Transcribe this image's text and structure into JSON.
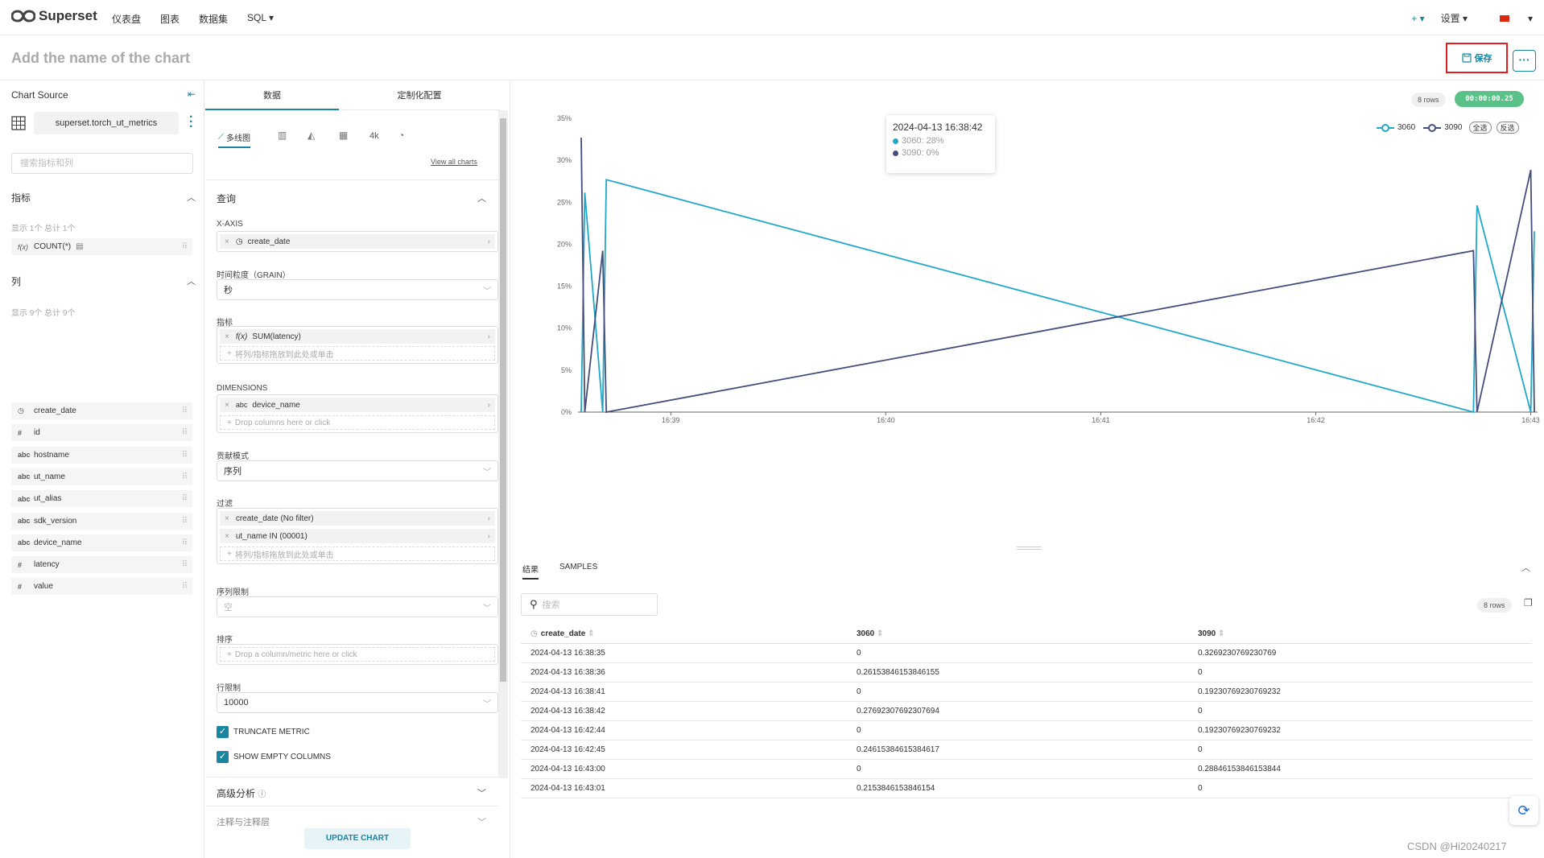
{
  "topbar": {
    "brand": "Superset",
    "nav": [
      "仪表盘",
      "图表",
      "数据集",
      "SQL ▾"
    ],
    "plus": "+ ▾",
    "settings": "设置 ▾",
    "lang": "▾"
  },
  "header": {
    "chart_title": "Add the name of the chart",
    "save_label": "保存",
    "more_label": "···"
  },
  "left_panel": {
    "source_label": "Chart Source",
    "dataset": "superset.torch_ut_metrics",
    "search_placeholder": "搜索指标和列",
    "metrics_title": "指标",
    "metrics_count": "显示 1个 总计 1个",
    "metrics": [
      {
        "icon": "f(x)",
        "name": "COUNT(*)"
      }
    ],
    "columns_title": "列",
    "columns_count": "显示 9个 总计 9个",
    "columns": [
      {
        "icon": "clock",
        "name": "create_date"
      },
      {
        "icon": "#",
        "name": "id"
      },
      {
        "icon": "abc",
        "name": "hostname"
      },
      {
        "icon": "abc",
        "name": "ut_name"
      },
      {
        "icon": "abc",
        "name": "ut_alias"
      },
      {
        "icon": "abc",
        "name": "sdk_version"
      },
      {
        "icon": "abc",
        "name": "device_name"
      },
      {
        "icon": "#",
        "name": "latency"
      },
      {
        "icon": "#",
        "name": "value"
      }
    ]
  },
  "mid_panel": {
    "tabs": [
      "数据",
      "定制化配置"
    ],
    "chart_types": [
      "多线图",
      "4k"
    ],
    "view_all": "View all charts",
    "query_title": "查询",
    "x_axis_label": "X-AXIS",
    "x_axis_value": "create_date",
    "grain_label": "时间粒度（GRAIN）",
    "grain_value": "秒",
    "metrics_label": "指标",
    "metric_value": "SUM(latency)",
    "metric_drop": "将列/指标拖放到此处或单击",
    "dimensions_label": "DIMENSIONS",
    "dimension_value": "device_name",
    "dimension_drop": "Drop columns here or click",
    "contribution_label": "贡献模式",
    "contribution_value": "序列",
    "filters_label": "过滤",
    "filters": [
      "create_date (No filter)",
      "ut_name IN (00001)"
    ],
    "filter_drop": "将列/指标拖放到此处或单击",
    "series_limit_label": "序列限制",
    "series_limit_value": "空",
    "sort_label": "排序",
    "sort_drop": "Drop a column/metric here or click",
    "row_limit_label": "行限制",
    "row_limit_value": "10000",
    "truncate_label": "TRUNCATE METRIC",
    "show_empty_label": "SHOW EMPTY COLUMNS",
    "advanced_label": "高级分析",
    "annotations_label": "注释与注释层",
    "update_label": "UPDATE CHART"
  },
  "right_panel": {
    "rows_badge": "8 rows",
    "timer": "00:00:00.25",
    "tooltip": {
      "title": "2024-04-13 16:38:42",
      "lines": [
        "3060: 28%",
        "3090: 0%"
      ]
    },
    "legend_select_all": "全选",
    "legend_invert": "反选",
    "result_tabs": [
      "结果",
      "SAMPLES"
    ],
    "search_placeholder": "搜索",
    "table_rows_badge": "8 rows",
    "table_headers": [
      "create_date",
      "3060",
      "3090"
    ],
    "table_rows": [
      [
        "2024-04-13 16:38:35",
        "0",
        "0.3269230769230769"
      ],
      [
        "2024-04-13 16:38:36",
        "0.26153846153846155",
        "0"
      ],
      [
        "2024-04-13 16:38:41",
        "0",
        "0.19230769230769232"
      ],
      [
        "2024-04-13 16:38:42",
        "0.27692307692307694",
        "0"
      ],
      [
        "2024-04-13 16:42:44",
        "0",
        "0.19230769230769232"
      ],
      [
        "2024-04-13 16:42:45",
        "0.24615384615384617",
        "0"
      ],
      [
        "2024-04-13 16:43:00",
        "0",
        "0.28846153846153844"
      ],
      [
        "2024-04-13 16:43:01",
        "0.2153846153846154",
        "0"
      ]
    ],
    "watermark": "CSDN @Hi20240217"
  },
  "chart_data": {
    "type": "line",
    "x": [
      "16:38:35",
      "16:38:36",
      "16:38:41",
      "16:38:42",
      "16:42:44",
      "16:42:45",
      "16:43:00",
      "16:43:01"
    ],
    "x_ticks": [
      "16:39",
      "16:40",
      "16:41",
      "16:42",
      "16:43"
    ],
    "y_ticks": [
      "0%",
      "5%",
      "10%",
      "15%",
      "20%",
      "25%",
      "30%",
      "35%"
    ],
    "ylim": [
      0,
      0.35
    ],
    "series": [
      {
        "name": "3060",
        "color": "#1fa8c9",
        "values": [
          0,
          0.2615,
          0,
          0.2769,
          0,
          0.2462,
          0,
          0.2154
        ]
      },
      {
        "name": "3090",
        "color": "#454e7c",
        "values": [
          0.3269,
          0,
          0.1923,
          0,
          0.1923,
          0,
          0.2885,
          0
        ]
      }
    ],
    "legend": "top-right"
  }
}
